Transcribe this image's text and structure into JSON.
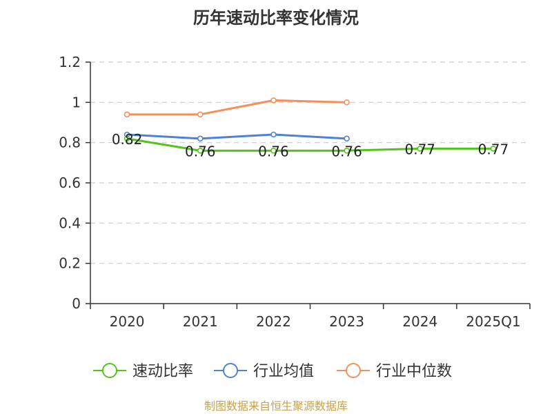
{
  "chart_data": {
    "type": "line",
    "title": "历年速动比率变化情况",
    "categories": [
      "2020",
      "2021",
      "2022",
      "2023",
      "2024",
      "2025Q1"
    ],
    "ylim": [
      0,
      1.2
    ],
    "yticks": [
      "0",
      "0.2",
      "0.4",
      "0.6",
      "0.8",
      "1",
      "1.2"
    ],
    "grid": true,
    "legend_position": "bottom",
    "series": [
      {
        "name": "速动比率",
        "color": "#52c41a",
        "values": [
          0.82,
          0.76,
          0.76,
          0.76,
          0.77,
          0.77
        ],
        "labels": [
          "0.82",
          "0.76",
          "0.76",
          "0.76",
          "0.77",
          "0.77"
        ]
      },
      {
        "name": "行业均值",
        "color": "#4f81d8",
        "values": [
          0.84,
          0.82,
          0.84,
          0.82,
          null,
          null
        ]
      },
      {
        "name": "行业中位数",
        "color": "#f5905a",
        "values": [
          0.94,
          0.94,
          1.01,
          1.0,
          null,
          null
        ]
      }
    ]
  },
  "footer": {
    "source": "制图数据来自恒生聚源数据库"
  }
}
